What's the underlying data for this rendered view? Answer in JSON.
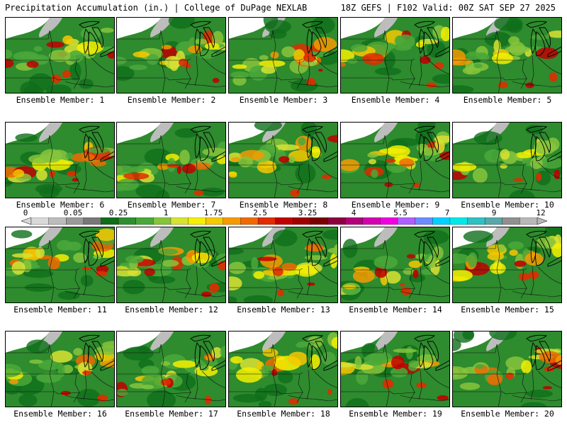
{
  "header": {
    "title": "Precipitation Accumulation (in.) | College of DuPage NEXLAB",
    "run_info": "18Z GEFS | F102 Valid: 00Z SAT SEP 27 2025"
  },
  "colors": {
    "bins": [
      "#d9d9d9",
      "#bcbcbc",
      "#9a9a9a",
      "#787878",
      "#0f6e1a",
      "#2f8f2f",
      "#4aa83a",
      "#86c43c",
      "#d8e233",
      "#f5f000",
      "#f6c800",
      "#f59a00",
      "#f06a00",
      "#e02c00",
      "#c00000",
      "#a00000",
      "#7a0000",
      "#8c0040",
      "#b0007a",
      "#d400b0",
      "#f000e0",
      "#b060ff",
      "#6c8cff",
      "#00d0ff",
      "#00e8e8",
      "#30c0c0",
      "#58a8a8",
      "#909090",
      "#b8b8b8"
    ]
  },
  "colorbar": {
    "ticks": [
      "0",
      "0.05",
      "0.25",
      "1",
      "1.75",
      "2.5",
      "3.25",
      "4",
      "5.5",
      "7",
      "9",
      "12"
    ]
  },
  "panels": [
    {
      "member": "Ensemble Member: 1"
    },
    {
      "member": "Ensemble Member: 2"
    },
    {
      "member": "Ensemble Member: 3"
    },
    {
      "member": "Ensemble Member: 4"
    },
    {
      "member": "Ensemble Member: 5"
    },
    {
      "member": "Ensemble Member: 6"
    },
    {
      "member": "Ensemble Member: 7"
    },
    {
      "member": "Ensemble Member: 8"
    },
    {
      "member": "Ensemble Member: 9"
    },
    {
      "member": "Ensemble Member: 10"
    },
    {
      "member": "Ensemble Member: 11"
    },
    {
      "member": "Ensemble Member: 12"
    },
    {
      "member": "Ensemble Member: 13"
    },
    {
      "member": "Ensemble Member: 14"
    },
    {
      "member": "Ensemble Member: 15"
    },
    {
      "member": "Ensemble Member: 16"
    },
    {
      "member": "Ensemble Member: 17"
    },
    {
      "member": "Ensemble Member: 18"
    },
    {
      "member": "Ensemble Member: 19"
    },
    {
      "member": "Ensemble Member: 20"
    }
  ]
}
